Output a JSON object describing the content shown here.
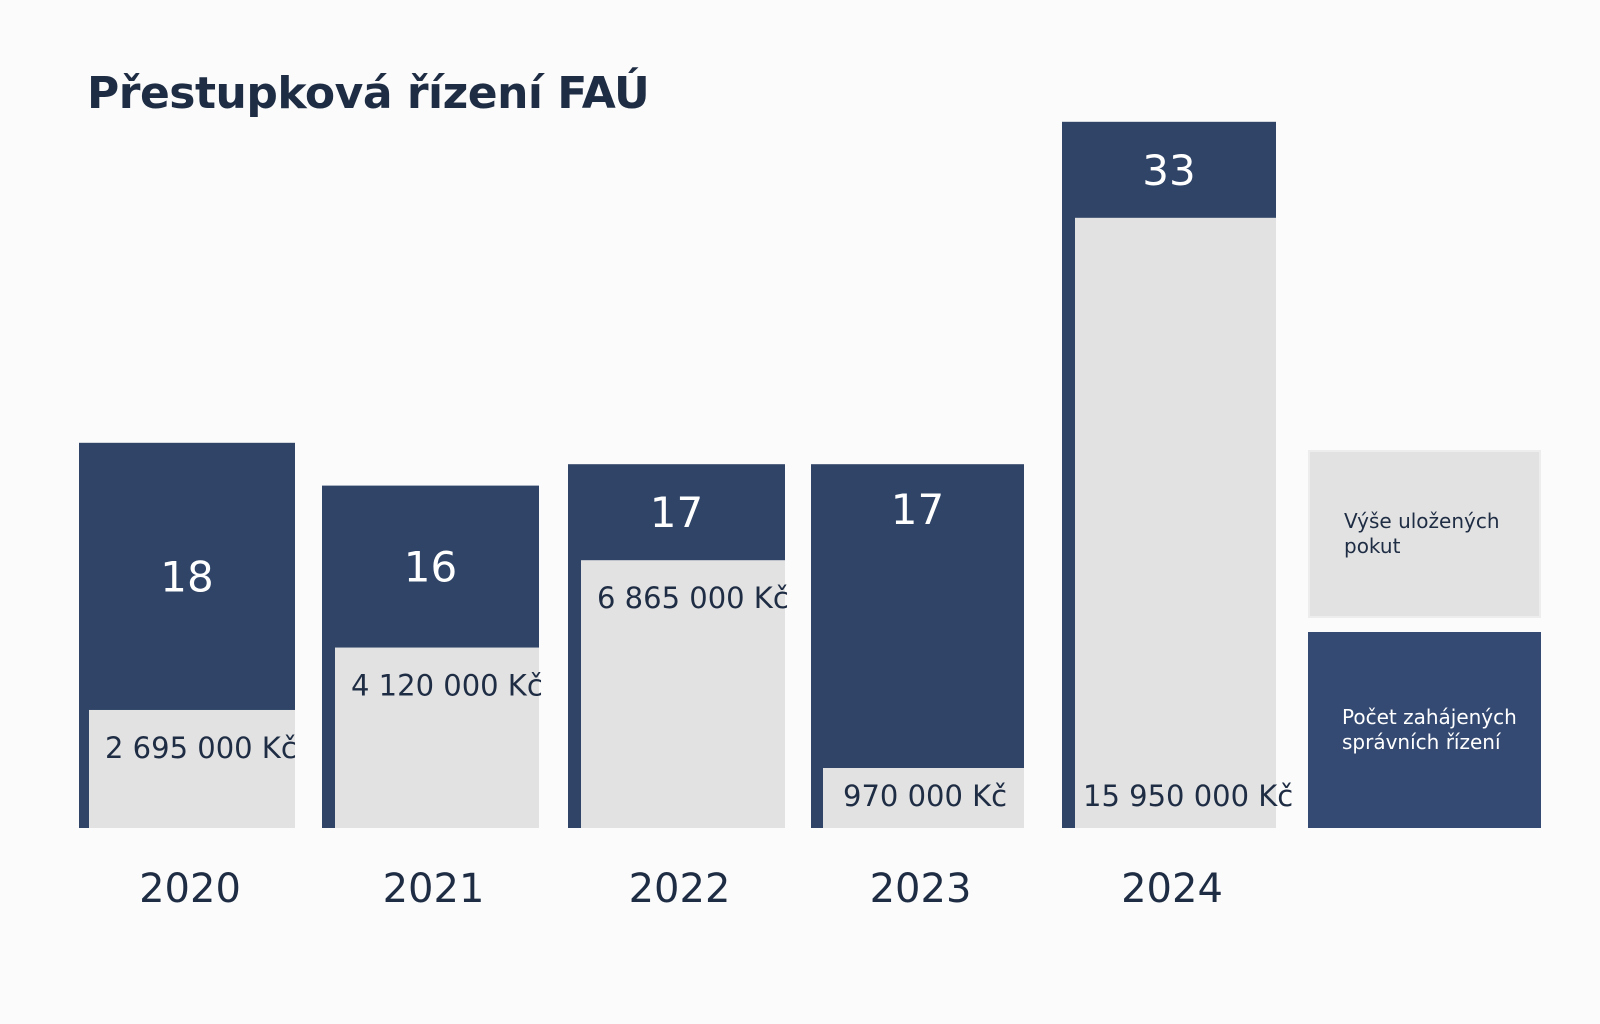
{
  "chart_data": {
    "type": "bar",
    "title": "Přestupková řízení FAÚ",
    "categories": [
      "2020",
      "2021",
      "2022",
      "2023",
      "2024"
    ],
    "series": [
      {
        "name": "Počet zahájených správních řízení",
        "values": [
          18,
          16,
          17,
          17,
          33
        ],
        "labels": [
          "18",
          "16",
          "17",
          "17",
          "33"
        ],
        "color": "#2f4467"
      },
      {
        "name": "Výše uložených pokut",
        "values": [
          2695000,
          4120000,
          6865000,
          970000,
          15950000
        ],
        "labels": [
          "2 695 000 Kč",
          "4 120 000 Kč",
          "6 865 000 Kč",
          "970 000 Kč",
          "15 950 000 Kč"
        ],
        "unit": "Kč",
        "color": "#e2e2e2"
      }
    ],
    "legend": {
      "position": "right",
      "items": [
        {
          "label": "Výše uložených pokut",
          "color": "#e2e2e2"
        },
        {
          "label": "Počet zahájených správních řízení",
          "color": "#344a72"
        }
      ]
    },
    "xlabel": "",
    "ylabel": "",
    "grid": false
  }
}
